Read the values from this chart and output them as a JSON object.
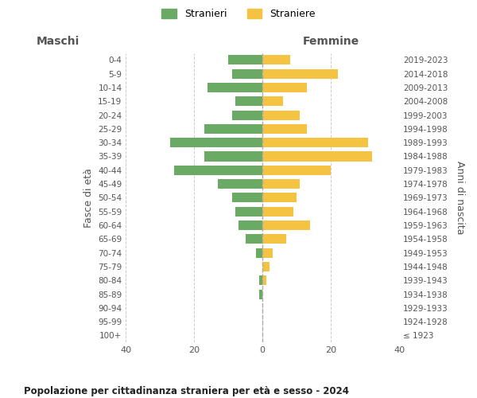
{
  "age_groups": [
    "100+",
    "95-99",
    "90-94",
    "85-89",
    "80-84",
    "75-79",
    "70-74",
    "65-69",
    "60-64",
    "55-59",
    "50-54",
    "45-49",
    "40-44",
    "35-39",
    "30-34",
    "25-29",
    "20-24",
    "15-19",
    "10-14",
    "5-9",
    "0-4"
  ],
  "birth_years": [
    "≤ 1923",
    "1924-1928",
    "1929-1933",
    "1934-1938",
    "1939-1943",
    "1944-1948",
    "1949-1953",
    "1954-1958",
    "1959-1963",
    "1964-1968",
    "1969-1973",
    "1974-1978",
    "1979-1983",
    "1984-1988",
    "1989-1993",
    "1994-1998",
    "1999-2003",
    "2004-2008",
    "2009-2013",
    "2014-2018",
    "2019-2023"
  ],
  "maschi": [
    0,
    0,
    0,
    1,
    1,
    0,
    2,
    5,
    7,
    8,
    9,
    13,
    26,
    17,
    27,
    17,
    9,
    8,
    16,
    9,
    10
  ],
  "femmine": [
    0,
    0,
    0,
    0,
    1,
    2,
    3,
    7,
    14,
    9,
    10,
    11,
    20,
    32,
    31,
    13,
    11,
    6,
    13,
    22,
    8
  ],
  "color_maschi": "#6aaa64",
  "color_femmine": "#f5c342",
  "title": "Popolazione per cittadinanza straniera per età e sesso - 2024",
  "xlabel_left": "Maschi",
  "xlabel_right": "Femmine",
  "ylabel_left": "Fasce di età",
  "ylabel_right": "Anni di nascita",
  "legend_maschi": "Stranieri",
  "legend_femmine": "Straniere",
  "xlim": 40,
  "background_color": "#ffffff",
  "grid_color": "#cccccc"
}
